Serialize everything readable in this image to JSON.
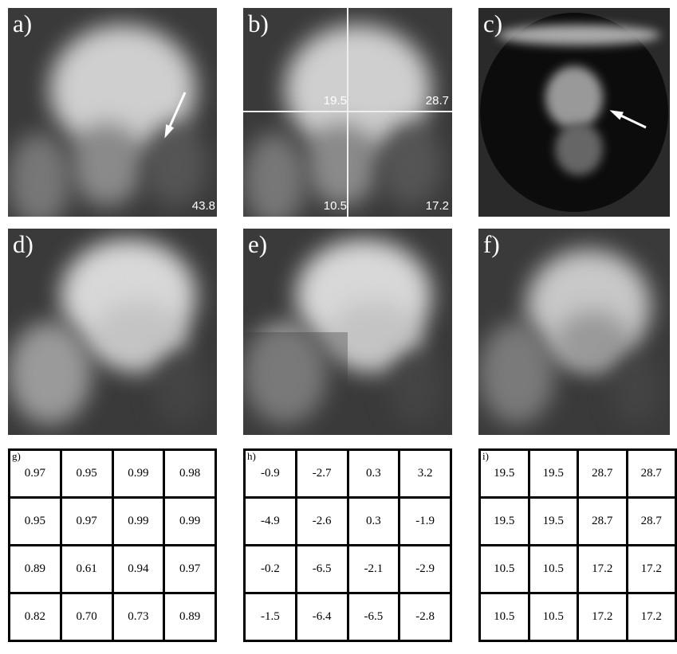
{
  "panels": [
    {
      "label": "a)",
      "values": [
        "43.8"
      ]
    },
    {
      "label": "b)",
      "values": [
        "19.5",
        "28.7",
        "10.5",
        "17.2"
      ]
    },
    {
      "label": "c)"
    },
    {
      "label": "d)"
    },
    {
      "label": "e)"
    },
    {
      "label": "f)"
    }
  ],
  "tables": [
    {
      "label": "g)",
      "rows": [
        [
          "0.97",
          "0.95",
          "0.99",
          "0.98"
        ],
        [
          "0.95",
          "0.97",
          "0.99",
          "0.99"
        ],
        [
          "0.89",
          "0.61",
          "0.94",
          "0.97"
        ],
        [
          "0.82",
          "0.70",
          "0.73",
          "0.89"
        ]
      ]
    },
    {
      "label": "h)",
      "rows": [
        [
          "-0.9",
          "-2.7",
          "0.3",
          "3.2"
        ],
        [
          "-4.9",
          "-2.6",
          "0.3",
          "-1.9"
        ],
        [
          "-0.2",
          "-6.5",
          "-2.1",
          "-2.9"
        ],
        [
          "-1.5",
          "-6.4",
          "-6.5",
          "-2.8"
        ]
      ]
    },
    {
      "label": "i)",
      "rows": [
        [
          "19.5",
          "19.5",
          "28.7",
          "28.7"
        ],
        [
          "19.5",
          "19.5",
          "28.7",
          "28.7"
        ],
        [
          "10.5",
          "10.5",
          "17.2",
          "17.2"
        ],
        [
          "10.5",
          "10.5",
          "17.2",
          "17.2"
        ]
      ]
    }
  ]
}
